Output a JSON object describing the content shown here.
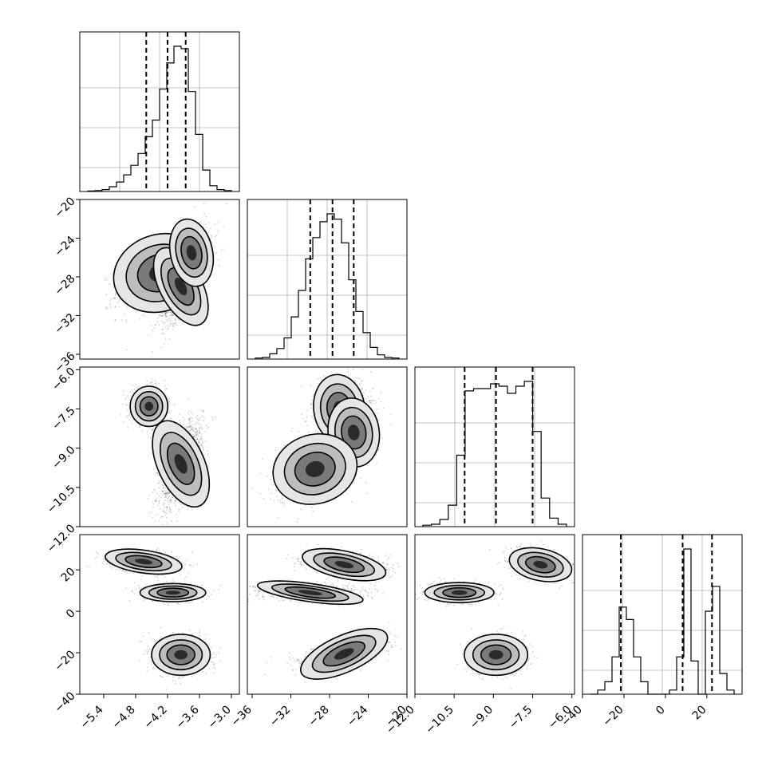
{
  "chart_data": {
    "type": "corner",
    "variables": [
      {
        "range": [
          -5.85,
          -2.85
        ],
        "ticks": [
          "-5.4",
          "-4.8",
          "-4.2",
          "-3.6",
          "-3.0"
        ],
        "quantiles": [
          -4.6,
          -4.2,
          -3.86
        ],
        "mean": -4.16,
        "sd": 0.32
      },
      {
        "range": [
          -36.5,
          -20
        ],
        "ticks": [
          "-36",
          "-32",
          "-28",
          "-24",
          "-20"
        ],
        "quantiles": [
          -30.0,
          -27.7,
          -25.5
        ],
        "mean": -27.8,
        "sd": 2.0
      },
      {
        "range": [
          -12,
          -5.9
        ],
        "ticks": [
          "-12.0",
          "-10.5",
          "-9.0",
          "-7.5",
          "-6.0"
        ],
        "quantiles": [
          -10.1,
          -8.9,
          -7.5
        ],
        "mean": -8.9,
        "sd": 1.0
      },
      {
        "range": [
          -40,
          37
        ],
        "ticks": [
          "-40",
          "-20",
          "0",
          "20"
        ],
        "quantiles": [
          -21.5,
          8.3,
          22.5
        ]
      }
    ],
    "histograms": [
      {
        "heights": [
          1,
          2,
          4,
          10,
          20,
          35,
          55,
          80,
          115,
          150,
          215,
          270,
          305,
          300,
          210,
          120,
          45,
          12,
          4,
          2
        ]
      },
      {
        "heights": [
          2,
          3,
          10,
          20,
          40,
          80,
          130,
          190,
          230,
          260,
          275,
          265,
          220,
          150,
          90,
          50,
          22,
          8,
          3,
          2
        ]
      },
      {
        "heights": [
          3,
          5,
          15,
          45,
          150,
          285,
          290,
          290,
          300,
          295,
          280,
          295,
          305,
          200,
          60,
          18,
          5
        ]
      },
      {
        "heights": [
          0,
          1,
          3,
          9,
          21,
          18,
          9,
          3,
          0,
          0,
          0,
          1,
          9,
          35,
          8,
          0,
          20,
          26,
          5,
          1
        ]
      }
    ]
  }
}
